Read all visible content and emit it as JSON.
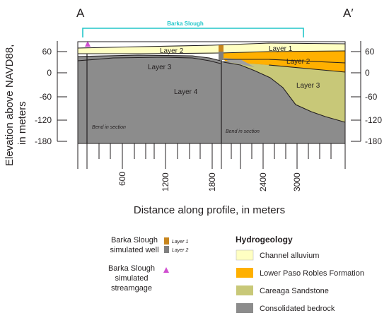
{
  "section": {
    "left_end_label": "A",
    "right_end_label": "A′",
    "slough_label": "Barka Slough",
    "layer_labels": {
      "left_layer2": "Layer 2",
      "left_layer3": "Layer 3",
      "left_layer4": "Layer 4",
      "right_layer1": "Layer 1",
      "right_layer2": "Layer 2",
      "right_layer3": "Layer 3"
    },
    "bend_label": "Bend in section",
    "y_axis_title_line1": "Elevation above NAVD88,",
    "y_axis_title_line2": "in meters",
    "y_ticks": [
      "60",
      "0",
      "-60",
      "-120",
      "-180"
    ],
    "x_ticks": [
      "600",
      "1200",
      "1800",
      "2400",
      "3000"
    ],
    "x_axis_title": "Distance along profile, in meters"
  },
  "legend_left": {
    "well_line1": "Barka Slough",
    "well_line2": "simulated well",
    "well_layer1": "Layer 1",
    "well_layer2": "Layer 2",
    "gage_line1": "Barka Slough",
    "gage_line2": "simulated",
    "gage_line3": "streamgage"
  },
  "legend_right": {
    "title": "Hydrogeology",
    "items": [
      {
        "label": "Channel alluvium",
        "color": "#ffffc2"
      },
      {
        "label": "Lower Paso Robles Formation",
        "color": "#ffb000"
      },
      {
        "label": "Careaga Sandstone",
        "color": "#c8c878"
      },
      {
        "label": "Consolidated bedrock",
        "color": "#8c8c8c"
      }
    ]
  },
  "colors": {
    "accent": "#22c6c9",
    "gage": "#d04fd0",
    "well_layer1": "#c8861e",
    "well_layer2": "#808080"
  }
}
